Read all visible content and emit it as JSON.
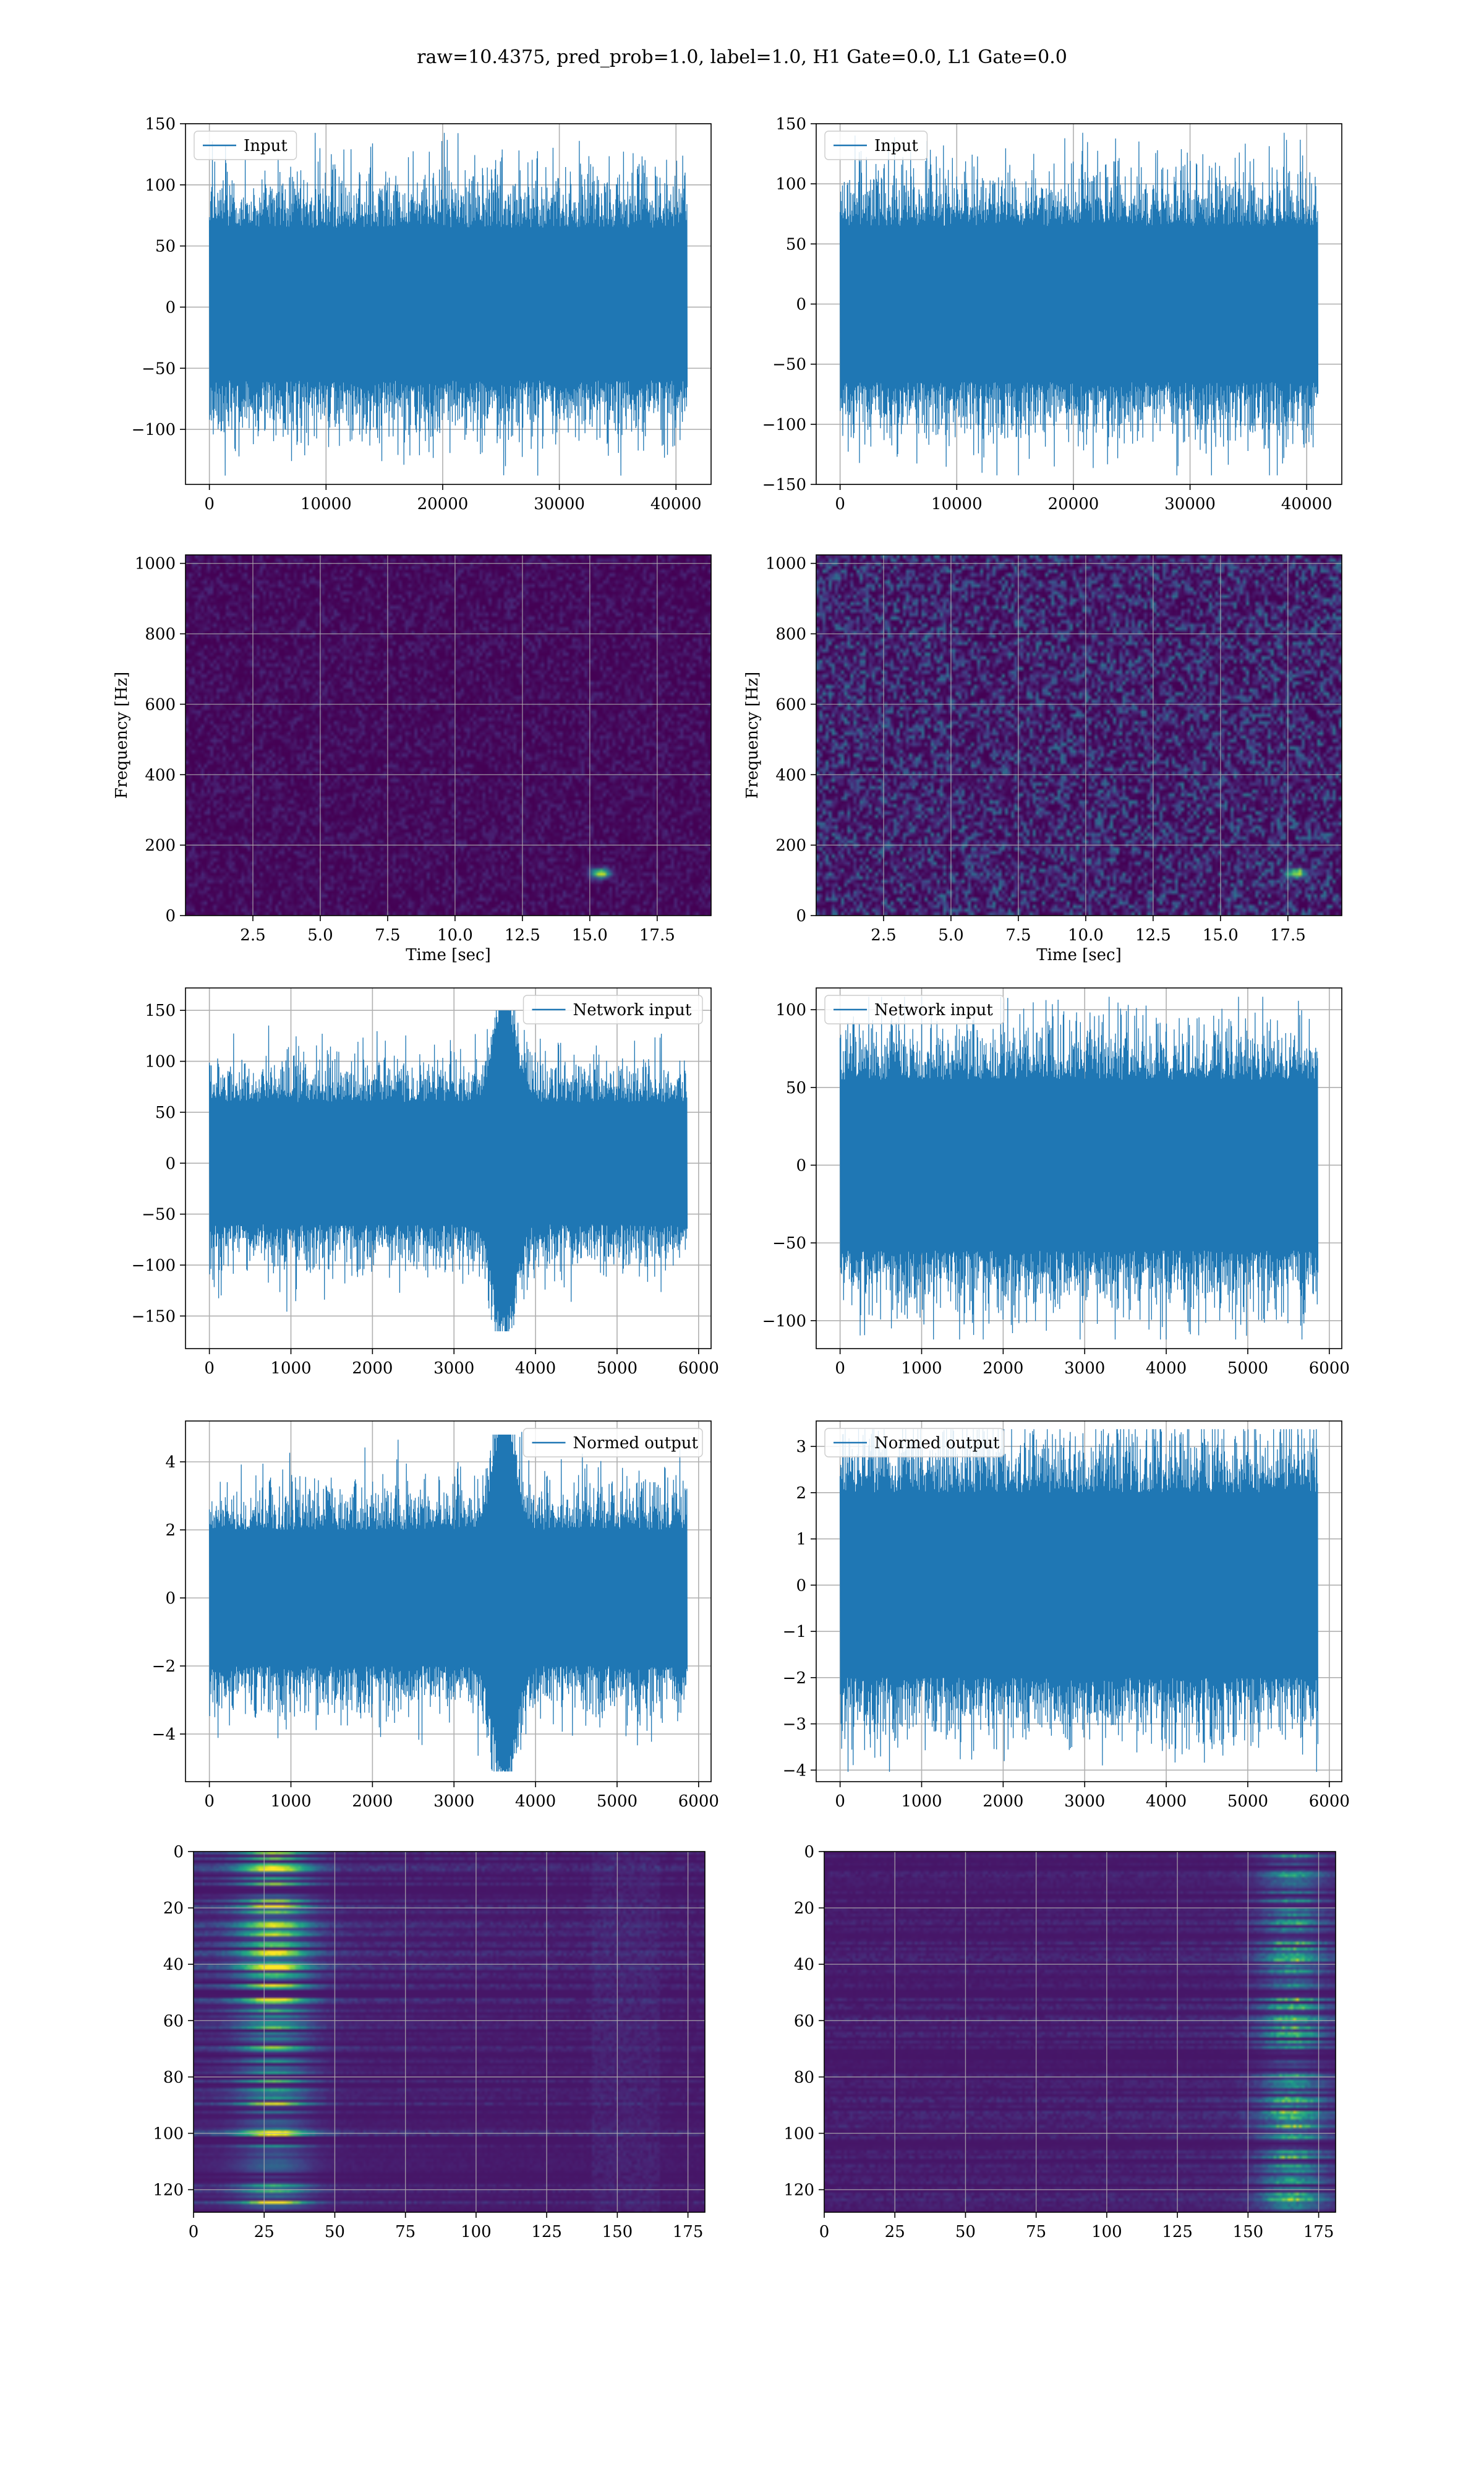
{
  "suptitle": "raw=10.4375, pred_prob=1.0, label=1.0, H1 Gate=0.0, L1 Gate=0.0",
  "colors": {
    "signal": "#1f77b4",
    "grid": "#b0b0b0",
    "axes": "#000000"
  },
  "chart_data": [
    {
      "type": "line",
      "id": "h1-input",
      "legend": {
        "label": "Input",
        "loc": "upper left"
      },
      "x_range": [
        0,
        40960
      ],
      "xlim": [
        -2048,
        43008
      ],
      "ylim": [
        -145,
        150
      ],
      "xticks": [
        0,
        10000,
        20000,
        30000,
        40000
      ],
      "yticks": [
        -100,
        -50,
        0,
        50,
        100,
        150
      ],
      "xticklabels": [
        "0",
        "10000",
        "20000",
        "30000",
        "40000"
      ],
      "yticklabels": [
        "−100",
        "−50",
        "0",
        "50",
        "100",
        "150"
      ],
      "signal": {
        "npoints": 1600,
        "base_sigma": 30,
        "env_lo": -60,
        "env_hi": 65,
        "burst": null
      },
      "grid": true
    },
    {
      "type": "line",
      "id": "l1-input",
      "legend": {
        "label": "Input",
        "loc": "upper left"
      },
      "x_range": [
        0,
        40960
      ],
      "xlim": [
        -2048,
        43008
      ],
      "ylim": [
        -150,
        150
      ],
      "xticks": [
        0,
        10000,
        20000,
        30000,
        40000
      ],
      "yticks": [
        -150,
        -100,
        -50,
        0,
        50,
        100,
        150
      ],
      "xticklabels": [
        "0",
        "10000",
        "20000",
        "30000",
        "40000"
      ],
      "yticklabels": [
        "−150",
        "−100",
        "−50",
        "0",
        "50",
        "100",
        "150"
      ],
      "signal": {
        "npoints": 1600,
        "base_sigma": 30,
        "env_lo": -65,
        "env_hi": 65,
        "burst": null
      },
      "grid": true
    },
    {
      "type": "heatmap",
      "id": "h1-spectrogram",
      "xlabel": "Time [sec]",
      "ylabel": "Frequency [Hz]",
      "xlim": [
        0,
        19.5
      ],
      "ylim": [
        0,
        1024
      ],
      "xticks": [
        2.5,
        5.0,
        7.5,
        10.0,
        12.5,
        15.0,
        17.5
      ],
      "yticks": [
        0,
        200,
        400,
        600,
        800,
        1000
      ],
      "xticklabels": [
        "2.5",
        "5.0",
        "7.5",
        "10.0",
        "12.5",
        "15.0",
        "17.5"
      ],
      "yticklabels": [
        "0",
        "200",
        "400",
        "600",
        "800",
        "1000"
      ],
      "colormap": "viridis",
      "noise_level": 0.12,
      "hotspots": [
        {
          "t": 15.4,
          "f": 120,
          "strength": 0.95
        }
      ],
      "grid": true
    },
    {
      "type": "heatmap",
      "id": "l1-spectrogram",
      "xlabel": "Time [sec]",
      "ylabel": "Frequency [Hz]",
      "xlim": [
        0,
        19.5
      ],
      "ylim": [
        0,
        1024
      ],
      "xticks": [
        2.5,
        5.0,
        7.5,
        10.0,
        12.5,
        15.0,
        17.5
      ],
      "yticks": [
        0,
        200,
        400,
        600,
        800,
        1000
      ],
      "xticklabels": [
        "2.5",
        "5.0",
        "7.5",
        "10.0",
        "12.5",
        "15.0",
        "17.5"
      ],
      "yticklabels": [
        "0",
        "200",
        "400",
        "600",
        "800",
        "1000"
      ],
      "colormap": "viridis",
      "noise_level": 0.38,
      "hotspots": [
        {
          "t": 17.8,
          "f": 120,
          "strength": 0.85
        }
      ],
      "grid": true
    },
    {
      "type": "line",
      "id": "h1-network-input",
      "legend": {
        "label": "Network input",
        "loc": "upper right"
      },
      "x_range": [
        0,
        5860
      ],
      "xlim": [
        -293,
        6153
      ],
      "ylim": [
        -182,
        172
      ],
      "xticks": [
        0,
        1000,
        2000,
        3000,
        4000,
        5000,
        6000
      ],
      "yticks": [
        -150,
        -100,
        -50,
        0,
        50,
        100,
        150
      ],
      "xticklabels": [
        "0",
        "1000",
        "2000",
        "3000",
        "4000",
        "5000",
        "6000"
      ],
      "yticklabels": [
        "−150",
        "−100",
        "−50",
        "0",
        "50",
        "100",
        "150"
      ],
      "signal": {
        "npoints": 1500,
        "base_sigma": 28,
        "env_lo": -60,
        "env_hi": 60,
        "burst": {
          "center": 3620,
          "width": 130,
          "amp": 150,
          "neg": 165
        }
      },
      "grid": true
    },
    {
      "type": "line",
      "id": "l1-network-input",
      "legend": {
        "label": "Network input",
        "loc": "upper left"
      },
      "x_range": [
        0,
        5860
      ],
      "xlim": [
        -293,
        6153
      ],
      "ylim": [
        -118,
        114
      ],
      "xticks": [
        0,
        1000,
        2000,
        3000,
        4000,
        5000,
        6000
      ],
      "yticks": [
        -100,
        -50,
        0,
        50,
        100
      ],
      "xticklabels": [
        "0",
        "1000",
        "2000",
        "3000",
        "4000",
        "5000",
        "6000"
      ],
      "yticklabels": [
        "−100",
        "−50",
        "0",
        "50",
        "100"
      ],
      "signal": {
        "npoints": 1500,
        "base_sigma": 24,
        "env_lo": -55,
        "env_hi": 55,
        "burst": null
      },
      "grid": true
    },
    {
      "type": "line",
      "id": "h1-normed-output",
      "legend": {
        "label": "Normed output",
        "loc": "upper right"
      },
      "x_range": [
        0,
        5860
      ],
      "xlim": [
        -293,
        6153
      ],
      "ylim": [
        -5.4,
        5.2
      ],
      "xticks": [
        0,
        1000,
        2000,
        3000,
        4000,
        5000,
        6000
      ],
      "yticks": [
        -4,
        -2,
        0,
        2,
        4
      ],
      "xticklabels": [
        "0",
        "1000",
        "2000",
        "3000",
        "4000",
        "5000",
        "6000"
      ],
      "yticklabels": [
        "−4",
        "−2",
        "0",
        "2",
        "4"
      ],
      "signal": {
        "npoints": 1500,
        "base_sigma": 0.9,
        "env_lo": -2.0,
        "env_hi": 2.0,
        "burst": {
          "center": 3620,
          "width": 130,
          "amp": 4.8,
          "neg": 5.1
        }
      },
      "grid": true
    },
    {
      "type": "line",
      "id": "l1-normed-output",
      "legend": {
        "label": "Normed output",
        "loc": "upper left"
      },
      "x_range": [
        0,
        5860
      ],
      "xlim": [
        -293,
        6153
      ],
      "ylim": [
        -4.25,
        3.55
      ],
      "xticks": [
        0,
        1000,
        2000,
        3000,
        4000,
        5000,
        6000
      ],
      "yticks": [
        -4,
        -3,
        -2,
        -1,
        0,
        1,
        2,
        3
      ],
      "xticklabels": [
        "0",
        "1000",
        "2000",
        "3000",
        "4000",
        "5000",
        "6000"
      ],
      "yticklabels": [
        "−4",
        "−3",
        "−2",
        "−1",
        "0",
        "1",
        "2",
        "3"
      ],
      "signal": {
        "npoints": 1500,
        "base_sigma": 0.85,
        "env_lo": -2.0,
        "env_hi": 2.0,
        "burst": null
      },
      "grid": true
    },
    {
      "type": "heatmap",
      "id": "h1-feature-map",
      "xlim": [
        0,
        181
      ],
      "ylim": [
        128,
        0
      ],
      "xticks": [
        0,
        25,
        50,
        75,
        100,
        125,
        150,
        175
      ],
      "yticks": [
        0,
        20,
        40,
        60,
        80,
        100,
        120
      ],
      "xticklabels": [
        "0",
        "25",
        "50",
        "75",
        "100",
        "125",
        "150",
        "175"
      ],
      "yticklabels": [
        "0",
        "20",
        "40",
        "60",
        "80",
        "100",
        "120"
      ],
      "colormap": "viridis",
      "active_region": "left",
      "grid": true
    },
    {
      "type": "heatmap",
      "id": "l1-feature-map",
      "xlim": [
        0,
        181
      ],
      "ylim": [
        128,
        0
      ],
      "xticks": [
        0,
        25,
        50,
        75,
        100,
        125,
        150,
        175
      ],
      "yticks": [
        0,
        20,
        40,
        60,
        80,
        100,
        120
      ],
      "xticklabels": [
        "0",
        "25",
        "50",
        "75",
        "100",
        "125",
        "150",
        "175"
      ],
      "yticklabels": [
        "0",
        "20",
        "40",
        "60",
        "80",
        "100",
        "120"
      ],
      "colormap": "viridis",
      "active_region": "right",
      "grid": true
    }
  ]
}
